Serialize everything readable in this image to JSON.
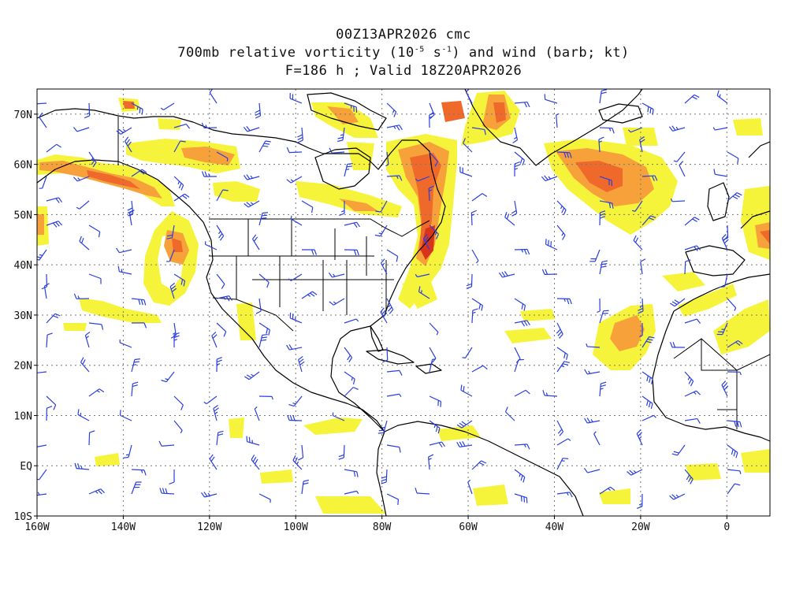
{
  "header": {
    "line1": "00Z13APR2026 cmc",
    "line2_pre": "700mb relative vorticity (10",
    "line2_sup1": "-5",
    "line2_mid": " s",
    "line2_sup2": "-1",
    "line2_post": ") and wind (barb; kt)",
    "line3": "F=186 h ; Valid 18Z20APR2026"
  },
  "map": {
    "lat_labels": [
      "70N",
      "60N",
      "50N",
      "40N",
      "30N",
      "20N",
      "10N",
      "EQ",
      "10S"
    ],
    "lon_labels": [
      "160W",
      "140W",
      "120W",
      "100W",
      "80W",
      "60W",
      "40W",
      "20W",
      "0"
    ],
    "lon_range": [
      -160,
      10
    ],
    "lat_range": [
      -10,
      75
    ],
    "grid": "dotted",
    "colors": {
      "shade_light": "#f6f43a",
      "shade_mid": "#ffd23a",
      "shade_orange": "#f7a13a",
      "shade_strong": "#ef6a2a",
      "shade_red": "#d8341c",
      "barb": "#2a3fe0",
      "coast": "#000000"
    },
    "barb_icon": "wind-barb-icon"
  }
}
